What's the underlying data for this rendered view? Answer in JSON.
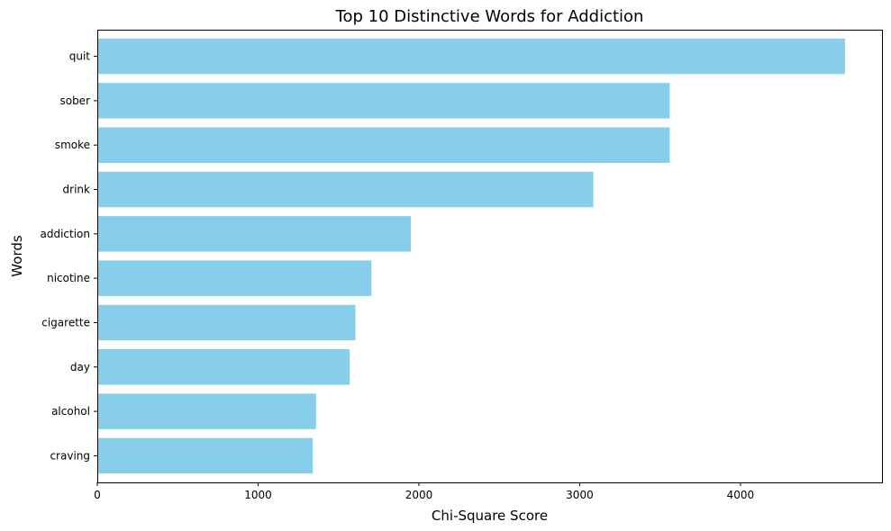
{
  "chart_data": {
    "type": "bar",
    "orientation": "horizontal",
    "title": "Top 10 Distinctive Words for Addiction",
    "xlabel": "Chi-Square Score",
    "ylabel": "Words",
    "categories": [
      "quit",
      "sober",
      "smoke",
      "drink",
      "addiction",
      "nicotine",
      "cigarette",
      "day",
      "alcohol",
      "craving"
    ],
    "values": [
      4650,
      3560,
      3560,
      3085,
      1950,
      1705,
      1605,
      1570,
      1360,
      1340
    ],
    "xlim": [
      0,
      4880
    ],
    "xticks": [
      0,
      1000,
      2000,
      3000,
      4000
    ],
    "grid": false,
    "bar_color": "#87ceeb"
  }
}
